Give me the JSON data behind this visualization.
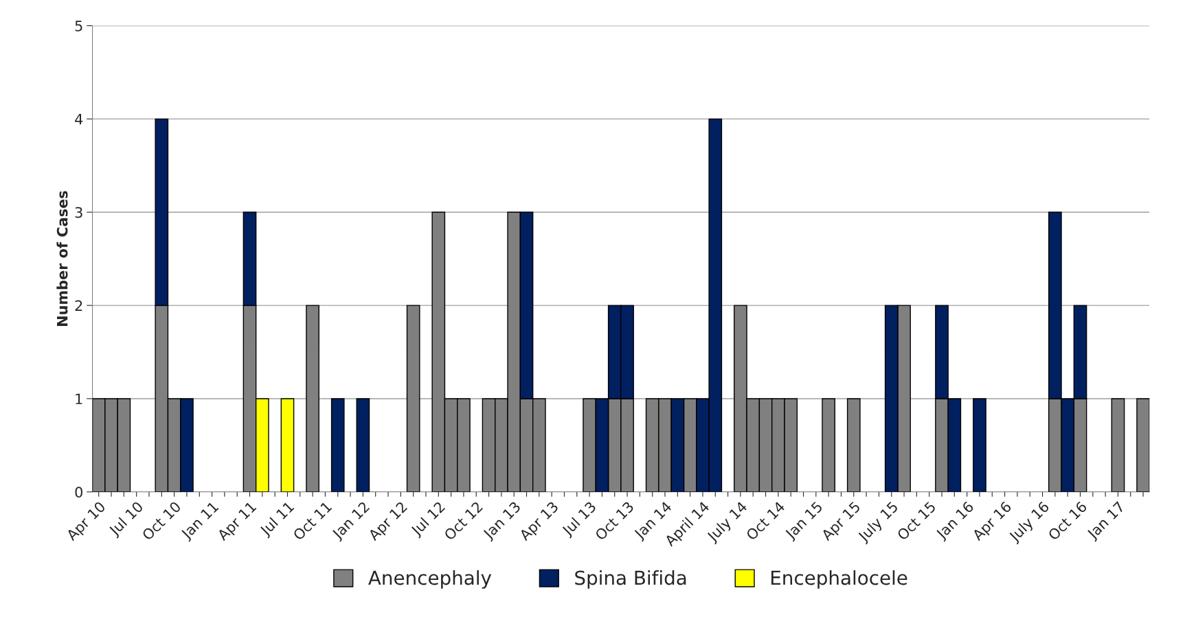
{
  "chart_data": {
    "type": "bar",
    "stacked": true,
    "ylabel": "Number of Cases",
    "categories": [
      "Apr 10",
      null,
      null,
      "Jul 10",
      null,
      null,
      "Oct 10",
      null,
      null,
      "Jan 11",
      null,
      null,
      "Apr 11",
      null,
      null,
      "Jul 11",
      null,
      null,
      "Oct 11",
      null,
      null,
      "Jan 12",
      null,
      null,
      "Apr 12",
      null,
      null,
      "Jul 12",
      null,
      null,
      "Oct 12",
      null,
      null,
      "Jan 13",
      null,
      null,
      "Apr 13",
      null,
      null,
      "Jul 13",
      null,
      null,
      "Oct 13",
      null,
      null,
      "Jan 14",
      null,
      null,
      "April 14",
      null,
      null,
      "July 14",
      null,
      null,
      "Oct 14",
      null,
      null,
      "Jan 15",
      null,
      null,
      "Apr 15",
      null,
      null,
      "July 15",
      null,
      null,
      "Oct 15",
      null,
      null,
      "Jan 16",
      null,
      null,
      "Apr 16",
      null,
      null,
      "July 16",
      null,
      null,
      "Oct 16",
      null,
      null,
      "Jan 17",
      null,
      null
    ],
    "series": [
      {
        "name": "Anencephaly",
        "color": "#808080",
        "values": [
          1,
          1,
          1,
          0,
          0,
          2,
          1,
          0,
          0,
          0,
          0,
          0,
          2,
          0,
          0,
          0,
          0,
          2,
          0,
          0,
          0,
          0,
          0,
          0,
          0,
          2,
          0,
          3,
          1,
          1,
          0,
          1,
          1,
          3,
          1,
          1,
          0,
          0,
          0,
          1,
          0,
          1,
          1,
          0,
          1,
          1,
          0,
          1,
          0,
          0,
          0,
          2,
          1,
          1,
          1,
          1,
          0,
          0,
          1,
          0,
          1,
          0,
          0,
          0,
          2,
          0,
          0,
          1,
          0,
          0,
          0,
          0,
          0,
          0,
          0,
          0,
          1,
          0,
          1,
          0,
          0,
          1,
          0,
          1
        ]
      },
      {
        "name": "Spina Bifida",
        "color": "#002060",
        "values": [
          0,
          0,
          0,
          0,
          0,
          2,
          0,
          1,
          0,
          0,
          0,
          0,
          1,
          0,
          0,
          0,
          0,
          0,
          0,
          1,
          0,
          1,
          0,
          0,
          0,
          0,
          0,
          0,
          0,
          0,
          0,
          0,
          0,
          0,
          2,
          0,
          0,
          0,
          0,
          0,
          1,
          1,
          1,
          0,
          0,
          0,
          1,
          0,
          1,
          4,
          0,
          0,
          0,
          0,
          0,
          0,
          0,
          0,
          0,
          0,
          0,
          0,
          0,
          2,
          0,
          0,
          0,
          1,
          1,
          0,
          1,
          0,
          0,
          0,
          0,
          0,
          2,
          1,
          1,
          0,
          0,
          0,
          0,
          0
        ]
      },
      {
        "name": "Encephalocele",
        "color": "#ffff00",
        "values": [
          0,
          0,
          0,
          0,
          0,
          0,
          0,
          0,
          0,
          0,
          0,
          0,
          0,
          1,
          0,
          1,
          0,
          0,
          0,
          0,
          0,
          0,
          0,
          0,
          0,
          0,
          0,
          0,
          0,
          0,
          0,
          0,
          0,
          0,
          0,
          0,
          0,
          0,
          0,
          0,
          0,
          0,
          0,
          0,
          0,
          0,
          0,
          0,
          0,
          0,
          0,
          0,
          0,
          0,
          0,
          0,
          0,
          0,
          0,
          0,
          0,
          0,
          0,
          0,
          0,
          0,
          0,
          0,
          0,
          0,
          0,
          0,
          0,
          0,
          0,
          0,
          0,
          0,
          0,
          0,
          0,
          0,
          0,
          0
        ]
      }
    ],
    "ylim": [
      0,
      5
    ],
    "yticks": [
      0,
      1,
      2,
      3,
      4,
      5
    ],
    "grid": "y",
    "legend": "bottom"
  }
}
